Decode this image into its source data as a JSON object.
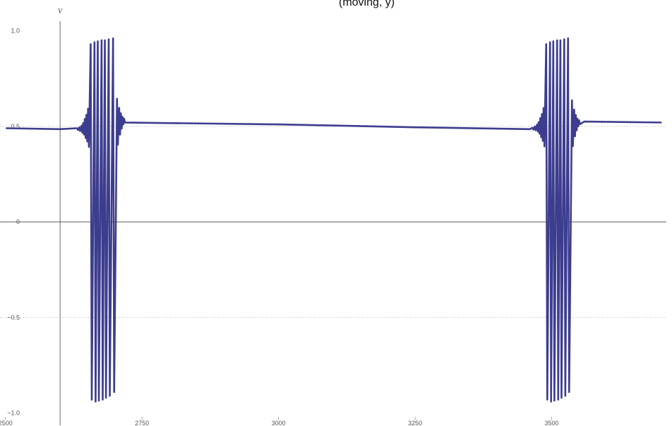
{
  "header": {
    "title_fragment": "(moving, y)"
  },
  "chart_data": {
    "type": "line",
    "title": "",
    "xlabel": "",
    "ylabel": "V",
    "xlim": [
      2490,
      3710
    ],
    "ylim": [
      -1.02,
      1.05
    ],
    "x_ticks": [
      2500,
      2750,
      3000,
      3250,
      3500
    ],
    "y_ticks": [
      1.0,
      0.5,
      0,
      -0.5,
      -1.0
    ],
    "y_tick_labels": [
      "1.0",
      "0.5",
      "0",
      "−0.5",
      "−1.0"
    ],
    "y_axis_at_x": 2600,
    "gridlines_y": [
      0.5,
      -0.5
    ],
    "color": "#3d3d8f",
    "baseline": [
      {
        "x": 2502,
        "y": 0.49
      },
      {
        "x": 2600,
        "y": 0.485
      },
      {
        "x": 2640,
        "y": 0.485
      },
      {
        "x": 2715,
        "y": 0.53
      },
      {
        "x": 3000,
        "y": 0.51
      },
      {
        "x": 3250,
        "y": 0.495
      },
      {
        "x": 3460,
        "y": 0.485
      },
      {
        "x": 3560,
        "y": 0.525
      },
      {
        "x": 3700,
        "y": 0.52
      }
    ],
    "bursts": [
      {
        "pre_ripple": [
          {
            "x": 2632,
            "amp": 0.005
          },
          {
            "x": 2636,
            "amp": 0.01
          },
          {
            "x": 2640,
            "amp": 0.018
          },
          {
            "x": 2643,
            "amp": 0.03
          },
          {
            "x": 2646,
            "amp": 0.05
          },
          {
            "x": 2649,
            "amp": 0.07
          },
          {
            "x": 2652,
            "amp": 0.1
          }
        ],
        "spikes": [
          {
            "x": 2657,
            "max": 0.93,
            "min": -0.93
          },
          {
            "x": 2664,
            "max": 0.94,
            "min": -0.94
          },
          {
            "x": 2670,
            "max": 0.945,
            "min": -0.935
          },
          {
            "x": 2677,
            "max": 0.95,
            "min": -0.93
          },
          {
            "x": 2683,
            "max": 0.95,
            "min": -0.92
          },
          {
            "x": 2690,
            "max": 0.955,
            "min": -0.91
          },
          {
            "x": 2698,
            "max": 0.96,
            "min": -0.89
          }
        ],
        "post_ripple": [
          {
            "x": 2705,
            "amp": 0.12
          },
          {
            "x": 2709,
            "amp": 0.07
          },
          {
            "x": 2712,
            "amp": 0.04
          },
          {
            "x": 2715,
            "amp": 0.02
          },
          {
            "x": 2718,
            "amp": 0.01
          }
        ]
      },
      {
        "pre_ripple": [
          {
            "x": 3466,
            "amp": 0.005
          },
          {
            "x": 3470,
            "amp": 0.01
          },
          {
            "x": 3474,
            "amp": 0.018
          },
          {
            "x": 3477,
            "amp": 0.03
          },
          {
            "x": 3480,
            "amp": 0.05
          },
          {
            "x": 3483,
            "amp": 0.07
          },
          {
            "x": 3486,
            "amp": 0.1
          }
        ],
        "spikes": [
          {
            "x": 3491,
            "max": 0.93,
            "min": -0.93
          },
          {
            "x": 3498,
            "max": 0.94,
            "min": -0.94
          },
          {
            "x": 3504,
            "max": 0.945,
            "min": -0.935
          },
          {
            "x": 3511,
            "max": 0.95,
            "min": -0.93
          },
          {
            "x": 3517,
            "max": 0.95,
            "min": -0.92
          },
          {
            "x": 3524,
            "max": 0.955,
            "min": -0.91
          },
          {
            "x": 3531,
            "max": 0.96,
            "min": -0.89
          }
        ],
        "post_ripple": [
          {
            "x": 3538,
            "amp": 0.12
          },
          {
            "x": 3542,
            "amp": 0.07
          },
          {
            "x": 3545,
            "amp": 0.04
          },
          {
            "x": 3548,
            "amp": 0.02
          },
          {
            "x": 3551,
            "amp": 0.01
          }
        ]
      }
    ]
  }
}
